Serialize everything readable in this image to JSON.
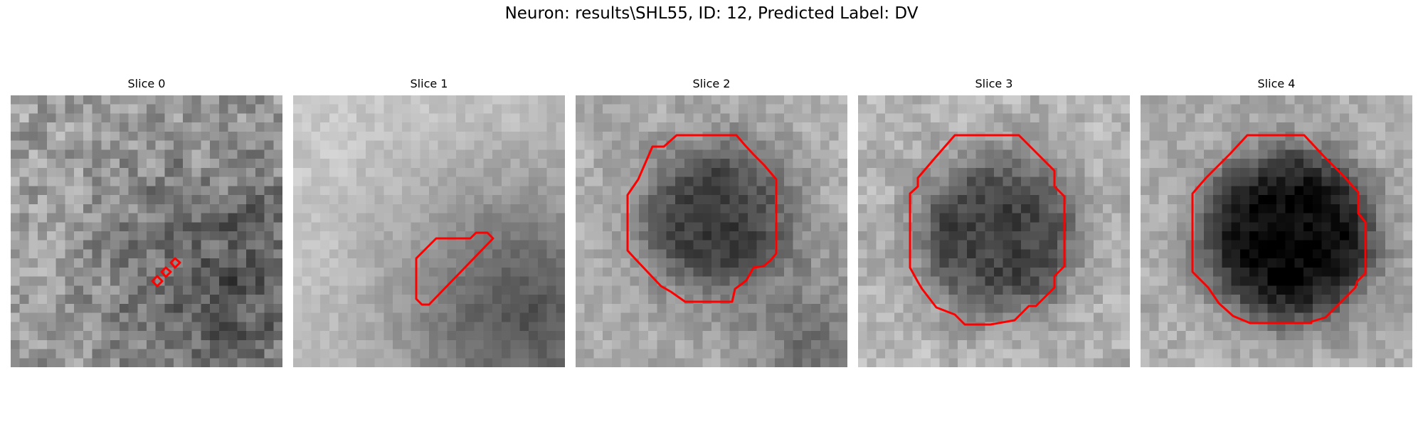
{
  "figure": {
    "title": "Neuron: results\\SHL55, ID: 12, Predicted Label: DV"
  },
  "colors": {
    "contour": "#ff0000",
    "background": "#ffffff"
  },
  "panels": [
    {
      "title": "Slice 0"
    },
    {
      "title": "Slice 1"
    },
    {
      "title": "Slice 2"
    },
    {
      "title": "Slice 3"
    },
    {
      "title": "Slice 4"
    }
  ]
}
